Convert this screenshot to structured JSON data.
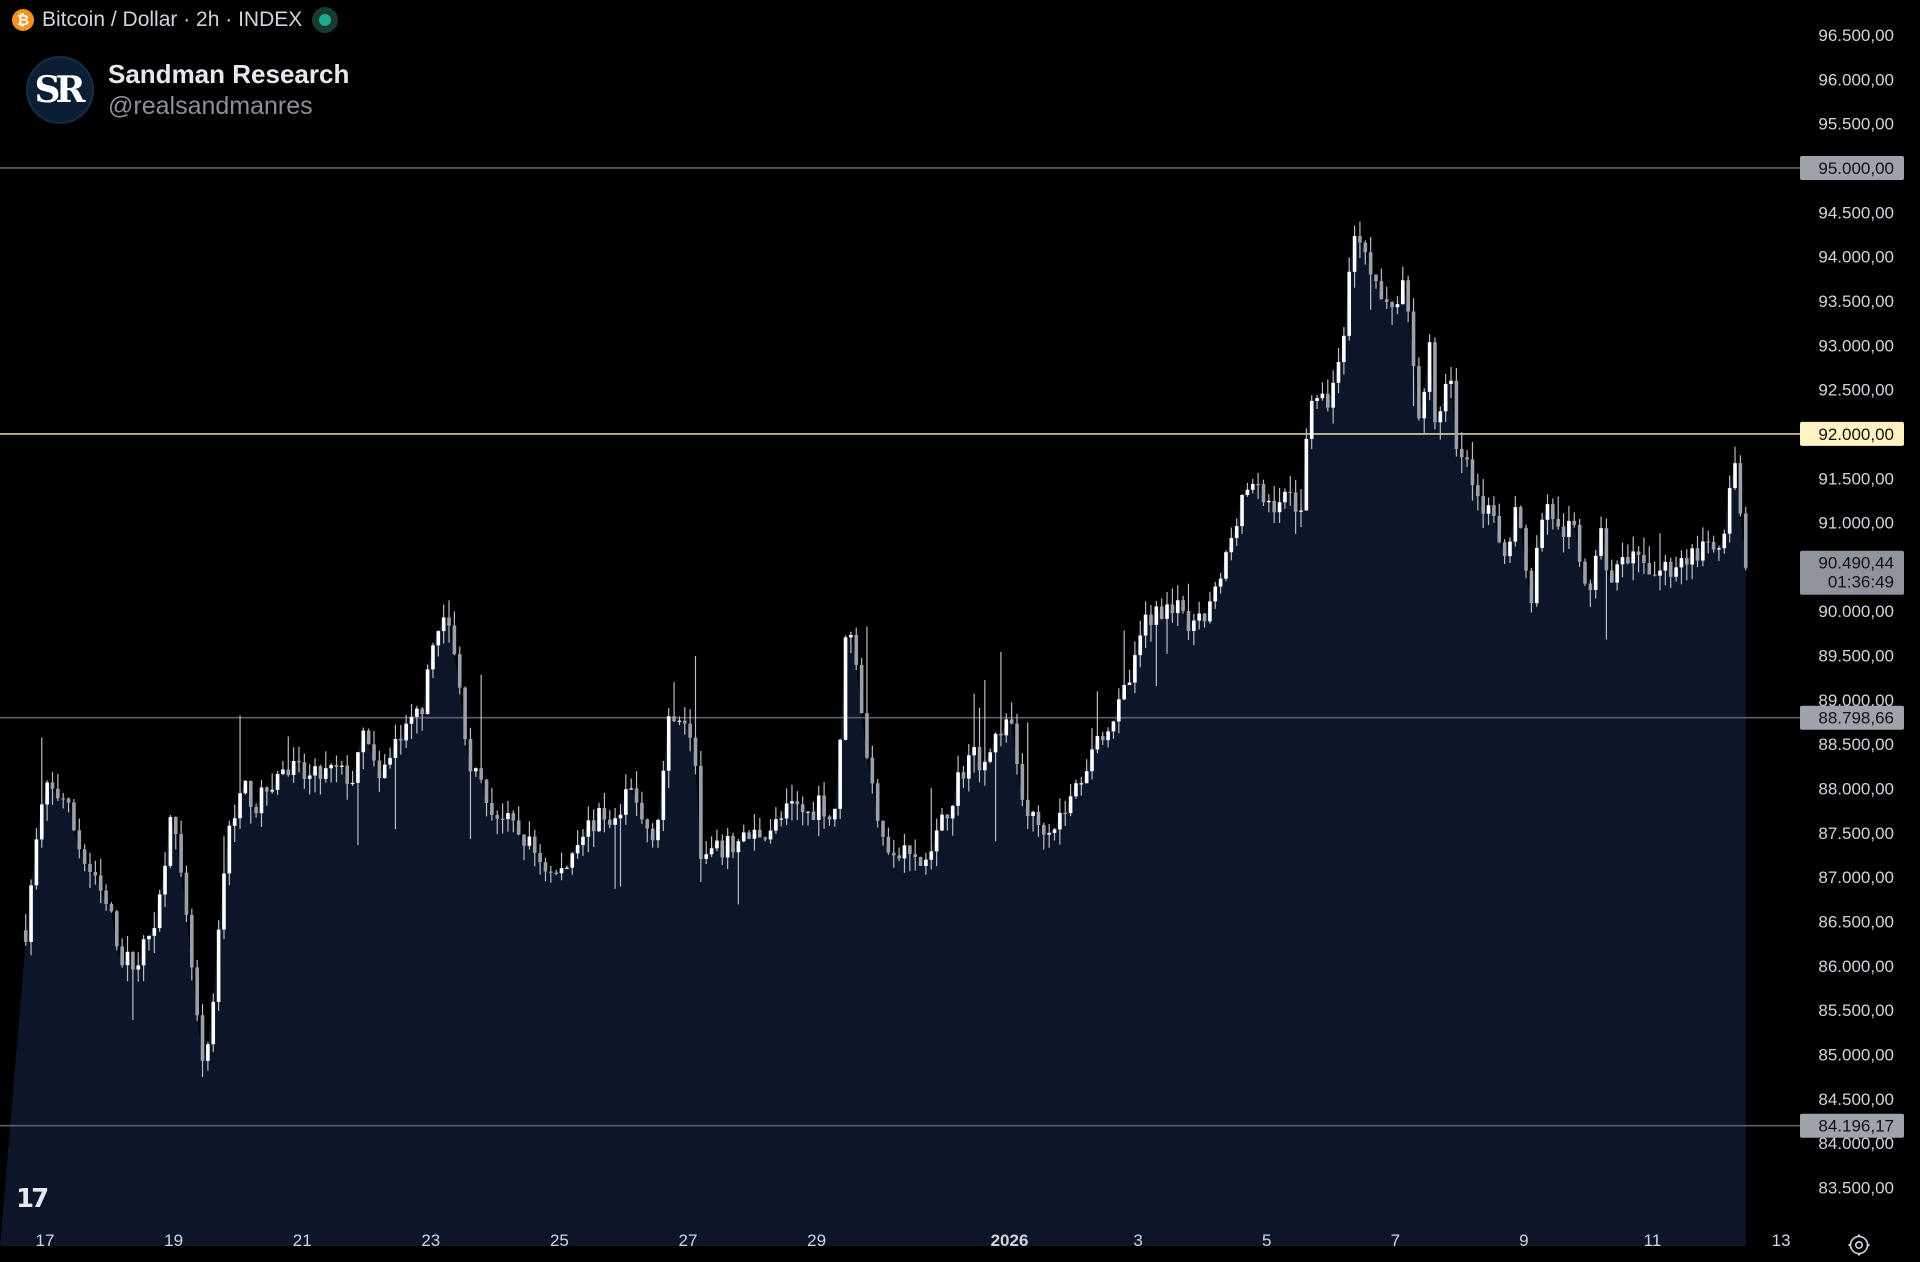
{
  "header": {
    "symbol_title": "Bitcoin / Dollar · 2h · INDEX",
    "coin_icon": "bitcoin-icon",
    "status_icon": "live-status-dot"
  },
  "brand": {
    "avatar_text": "SR",
    "name": "Sandman Research",
    "handle": "@realsandmanres"
  },
  "watermark": {
    "logo_text": "17"
  },
  "colors": {
    "background": "#000000",
    "area_fill": "#0c1628",
    "candle": "#ffffff",
    "wick": "#b8bcc6",
    "level_line": "#5d6068",
    "highlight_line": "#fff3c4",
    "level_label_bg": "#9da2ab",
    "highlight_label_bg": "#fff3c4",
    "axis_text": "#d1d4dc"
  },
  "chart_data": {
    "type": "candlestick",
    "interval": "2h",
    "y_range": [
      83100,
      96750
    ],
    "y_ticks": [
      {
        "value": 96500,
        "label": "96.500,00"
      },
      {
        "value": 96000,
        "label": "96.000,00"
      },
      {
        "value": 95500,
        "label": "95.500,00"
      },
      {
        "value": 94500,
        "label": "94.500,00"
      },
      {
        "value": 94000,
        "label": "94.000,00"
      },
      {
        "value": 93500,
        "label": "93.500,00"
      },
      {
        "value": 93000,
        "label": "93.000,00"
      },
      {
        "value": 92500,
        "label": "92.500,00"
      },
      {
        "value": 91500,
        "label": "91.500,00"
      },
      {
        "value": 91000,
        "label": "91.000,00"
      },
      {
        "value": 90000,
        "label": "90.000,00"
      },
      {
        "value": 89500,
        "label": "89.500,00"
      },
      {
        "value": 89000,
        "label": "89.000,00"
      },
      {
        "value": 88500,
        "label": "88.500,00"
      },
      {
        "value": 88000,
        "label": "88.000,00"
      },
      {
        "value": 87500,
        "label": "87.500,00"
      },
      {
        "value": 87000,
        "label": "87.000,00"
      },
      {
        "value": 86500,
        "label": "86.500,00"
      },
      {
        "value": 86000,
        "label": "86.000,00"
      },
      {
        "value": 85500,
        "label": "85.500,00"
      },
      {
        "value": 85000,
        "label": "85.000,00"
      },
      {
        "value": 84500,
        "label": "84.500,00"
      },
      {
        "value": 84000,
        "label": "84.000,00"
      },
      {
        "value": 83500,
        "label": "83.500,00"
      }
    ],
    "x_ticks": [
      {
        "day": 0,
        "label": "17",
        "bold": false
      },
      {
        "day": 2,
        "label": "19",
        "bold": false
      },
      {
        "day": 4,
        "label": "21",
        "bold": false
      },
      {
        "day": 6,
        "label": "23",
        "bold": false
      },
      {
        "day": 8,
        "label": "25",
        "bold": false
      },
      {
        "day": 10,
        "label": "27",
        "bold": false
      },
      {
        "day": 12,
        "label": "29",
        "bold": false
      },
      {
        "day": 15,
        "label": "2026",
        "bold": true
      },
      {
        "day": 17,
        "label": "3",
        "bold": false
      },
      {
        "day": 19,
        "label": "5",
        "bold": false
      },
      {
        "day": 21,
        "label": "7",
        "bold": false
      },
      {
        "day": 23,
        "label": "9",
        "bold": false
      },
      {
        "day": 25,
        "label": "11",
        "bold": false
      },
      {
        "day": 27,
        "label": "13",
        "bold": false
      }
    ],
    "horizontal_levels": [
      {
        "value": 95000,
        "label": "95.000,00",
        "style": "level"
      },
      {
        "value": 92000,
        "label": "92.000,00",
        "style": "highlight"
      },
      {
        "value": 88798.66,
        "label": "88.798,66",
        "style": "level"
      },
      {
        "value": 84196.17,
        "label": "84.196,17",
        "style": "level"
      }
    ],
    "last_price": {
      "value": 90490.44,
      "label": "90.490,44",
      "countdown": "01:36:49"
    },
    "close_path": [
      [
        -0.3,
        86400
      ],
      [
        -0.15,
        87300
      ],
      [
        0.0,
        88000
      ],
      [
        0.3,
        87900
      ],
      [
        0.6,
        87200
      ],
      [
        0.8,
        86900
      ],
      [
        1.0,
        86600
      ],
      [
        1.2,
        86100
      ],
      [
        1.4,
        86000
      ],
      [
        1.6,
        86300
      ],
      [
        1.8,
        86800
      ],
      [
        1.95,
        87800
      ],
      [
        2.05,
        87300
      ],
      [
        2.25,
        86200
      ],
      [
        2.45,
        84800
      ],
      [
        2.6,
        85300
      ],
      [
        2.75,
        86900
      ],
      [
        2.9,
        87700
      ],
      [
        3.1,
        88000
      ],
      [
        3.3,
        87800
      ],
      [
        3.5,
        88050
      ],
      [
        3.7,
        88200
      ],
      [
        3.9,
        88200
      ],
      [
        4.1,
        88100
      ],
      [
        4.3,
        88150
      ],
      [
        4.5,
        88200
      ],
      [
        4.8,
        88100
      ],
      [
        5.0,
        88700
      ],
      [
        5.2,
        88000
      ],
      [
        5.4,
        88500
      ],
      [
        5.6,
        88600
      ],
      [
        5.9,
        89000
      ],
      [
        6.1,
        89900
      ],
      [
        6.3,
        89800
      ],
      [
        6.45,
        89100
      ],
      [
        6.6,
        88300
      ],
      [
        6.9,
        87800
      ],
      [
        7.2,
        87600
      ],
      [
        7.5,
        87400
      ],
      [
        7.7,
        87200
      ],
      [
        7.9,
        87000
      ],
      [
        8.1,
        87100
      ],
      [
        8.3,
        87500
      ],
      [
        8.5,
        87600
      ],
      [
        8.7,
        87700
      ],
      [
        8.9,
        87600
      ],
      [
        9.1,
        88000
      ],
      [
        9.3,
        87600
      ],
      [
        9.5,
        87500
      ],
      [
        9.7,
        88700
      ],
      [
        9.9,
        88900
      ],
      [
        10.1,
        88600
      ],
      [
        10.2,
        87200
      ],
      [
        10.5,
        87300
      ],
      [
        10.8,
        87400
      ],
      [
        11.1,
        87500
      ],
      [
        11.4,
        87600
      ],
      [
        11.6,
        87800
      ],
      [
        11.9,
        87700
      ],
      [
        12.05,
        87900
      ],
      [
        12.25,
        87600
      ],
      [
        12.35,
        88200
      ],
      [
        12.45,
        89800
      ],
      [
        12.6,
        89600
      ],
      [
        12.8,
        88200
      ],
      [
        13.0,
        87600
      ],
      [
        13.2,
        87200
      ],
      [
        13.4,
        87300
      ],
      [
        13.6,
        87100
      ],
      [
        13.8,
        87300
      ],
      [
        14.0,
        87700
      ],
      [
        14.2,
        88100
      ],
      [
        14.4,
        88400
      ],
      [
        14.6,
        88300
      ],
      [
        14.8,
        88600
      ],
      [
        15.0,
        88800
      ],
      [
        15.2,
        87900
      ],
      [
        15.4,
        87600
      ],
      [
        15.7,
        87600
      ],
      [
        15.9,
        87800
      ],
      [
        16.1,
        88100
      ],
      [
        16.3,
        88500
      ],
      [
        16.5,
        88700
      ],
      [
        16.7,
        88900
      ],
      [
        16.95,
        89400
      ],
      [
        17.1,
        89900
      ],
      [
        17.3,
        90000
      ],
      [
        17.55,
        90100
      ],
      [
        17.75,
        89800
      ],
      [
        17.9,
        89800
      ],
      [
        18.1,
        90000
      ],
      [
        18.3,
        90400
      ],
      [
        18.5,
        91000
      ],
      [
        18.65,
        91400
      ],
      [
        18.85,
        91350
      ],
      [
        19.0,
        91200
      ],
      [
        19.2,
        91250
      ],
      [
        19.4,
        91300
      ],
      [
        19.55,
        91100
      ],
      [
        19.65,
        92500
      ],
      [
        19.8,
        92300
      ],
      [
        19.95,
        92400
      ],
      [
        20.15,
        92800
      ],
      [
        20.3,
        94000
      ],
      [
        20.4,
        94300
      ],
      [
        20.55,
        94100
      ],
      [
        20.7,
        93700
      ],
      [
        20.85,
        93400
      ],
      [
        21.0,
        93500
      ],
      [
        21.15,
        93700
      ],
      [
        21.25,
        93200
      ],
      [
        21.4,
        91800
      ],
      [
        21.5,
        93400
      ],
      [
        21.6,
        92000
      ],
      [
        21.75,
        92500
      ],
      [
        21.85,
        92600
      ],
      [
        22.0,
        91600
      ],
      [
        22.1,
        91800
      ],
      [
        22.3,
        91300
      ],
      [
        22.5,
        91000
      ],
      [
        22.7,
        90700
      ],
      [
        22.9,
        91200
      ],
      [
        23.0,
        90600
      ],
      [
        23.1,
        90100
      ],
      [
        23.3,
        91200
      ],
      [
        23.45,
        91100
      ],
      [
        23.6,
        90700
      ],
      [
        23.75,
        91000
      ],
      [
        23.9,
        90500
      ],
      [
        24.05,
        90100
      ],
      [
        24.2,
        91000
      ],
      [
        24.3,
        90400
      ],
      [
        24.5,
        90500
      ],
      [
        24.7,
        90550
      ],
      [
        24.9,
        90500
      ],
      [
        25.1,
        90450
      ],
      [
        25.3,
        90500
      ],
      [
        25.5,
        90600
      ],
      [
        25.7,
        90650
      ],
      [
        25.85,
        90700
      ],
      [
        26.0,
        90650
      ],
      [
        26.1,
        90700
      ],
      [
        26.2,
        91300
      ],
      [
        26.28,
        91600
      ],
      [
        26.36,
        91100
      ],
      [
        26.45,
        90490
      ]
    ]
  }
}
